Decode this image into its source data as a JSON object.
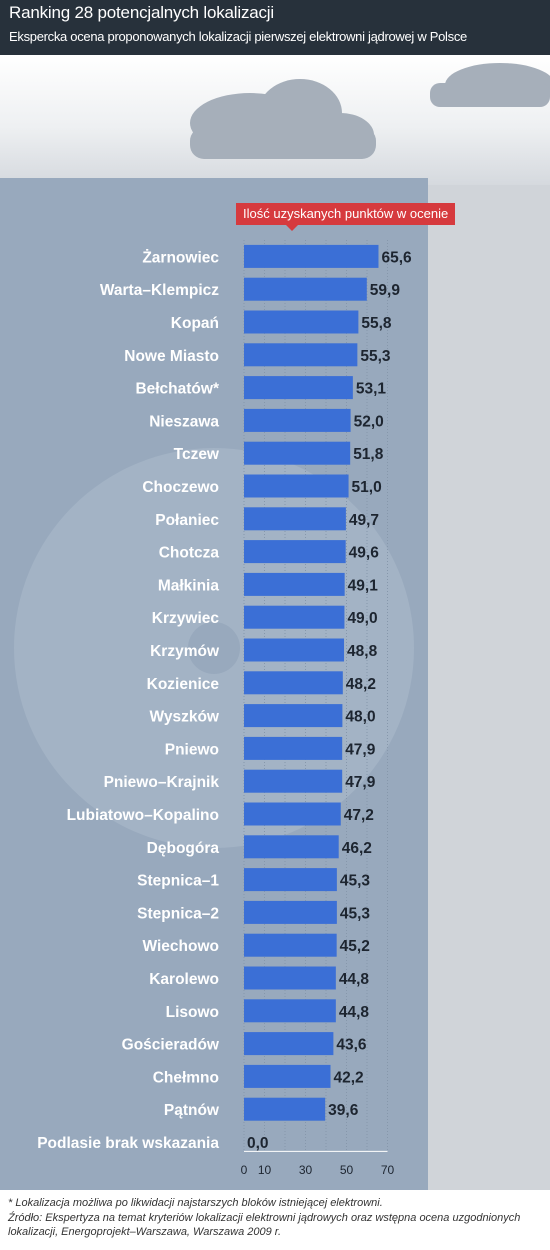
{
  "header": {
    "title": "Ranking 28 potencjalnych lokalizacji",
    "subtitle": "Ekspercka ocena proponowanych lokalizacji pierwszej elektrowni jądrowej w Polsce"
  },
  "legend": {
    "label": "Ilość uzyskanych punktów w ocenie"
  },
  "colors": {
    "bar": "#3b6fd6",
    "header": "#27313b",
    "tower": "#98a9bd",
    "legend": "#d63a3e"
  },
  "chart_data": {
    "type": "bar",
    "orientation": "horizontal",
    "categories": [
      "Żarnowiec",
      "Warta–Klempicz",
      "Kopań",
      "Nowe Miasto",
      "Bełchatów*",
      "Nieszawa",
      "Tczew",
      "Choczewo",
      "Połaniec",
      "Chotcza",
      "Małkinia",
      "Krzywiec",
      "Krzymów",
      "Kozienice",
      "Wyszków",
      "Pniewo",
      "Pniewo–Krajnik",
      "Lubiatowo–Kopalino",
      "Dębogóra",
      "Stepnica–1",
      "Stepnica–2",
      "Wiechowo",
      "Karolewo",
      "Lisowo",
      "Gościeradów",
      "Chełmno",
      "Pątnów",
      "Podlasie brak wskazania"
    ],
    "values": [
      65.6,
      59.9,
      55.8,
      55.3,
      53.1,
      52.0,
      51.8,
      51.0,
      49.7,
      49.6,
      49.1,
      49.0,
      48.8,
      48.2,
      48.0,
      47.9,
      47.9,
      47.2,
      46.2,
      45.3,
      45.3,
      45.2,
      44.8,
      44.8,
      43.6,
      42.2,
      39.6,
      0.0
    ],
    "value_labels": [
      "65,6",
      "59,9",
      "55,8",
      "55,3",
      "53,1",
      "52,0",
      "51,8",
      "51,0",
      "49,7",
      "49,6",
      "49,1",
      "49,0",
      "48,8",
      "48,2",
      "48,0",
      "47,9",
      "47,9",
      "47,2",
      "46,2",
      "45,3",
      "45,3",
      "45,2",
      "44,8",
      "44,8",
      "43,6",
      "42,2",
      "39,6",
      "0,0"
    ],
    "xticks": [
      0,
      10,
      30,
      50,
      70
    ],
    "xlim": [
      0,
      70
    ],
    "grid": true
  },
  "footer": {
    "footnote": "* Lokalizacja możliwa po likwidacji najstarszych bloków istniejącej elektrowni.",
    "source": "Źródło: Ekspertyza na temat kryteriów lokalizacji elektrowni jądrowych oraz wstępna ocena uzgodnionych lokalizacji, Energoprojekt–Warszawa, Warszawa 2009 r."
  }
}
